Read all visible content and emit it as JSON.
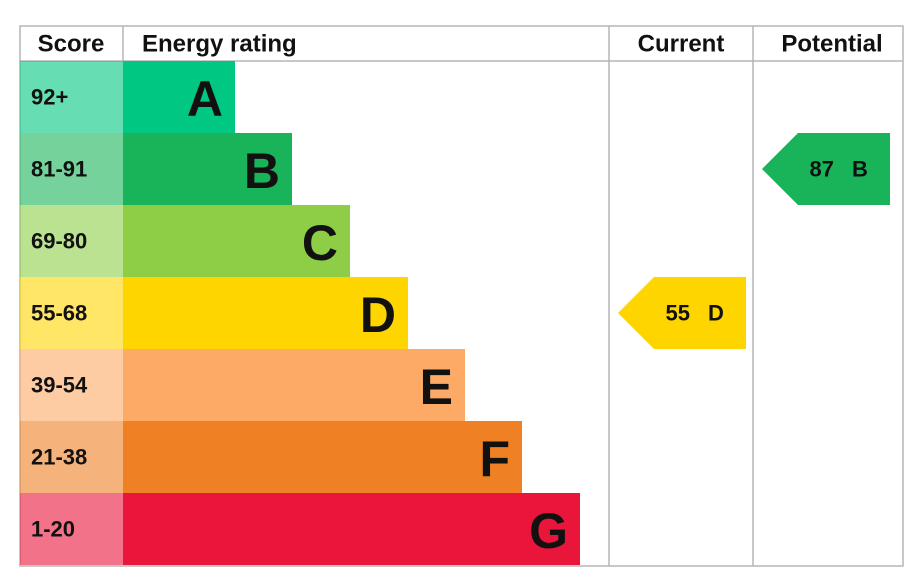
{
  "header": {
    "score": "Score",
    "energy_rating": "Energy rating",
    "current": "Current",
    "potential": "Potential"
  },
  "bands": [
    {
      "score": "92+",
      "letter": "A",
      "color": "#00c781"
    },
    {
      "score": "81-91",
      "letter": "B",
      "color": "#19b459"
    },
    {
      "score": "69-80",
      "letter": "C",
      "color": "#8dce46"
    },
    {
      "score": "55-68",
      "letter": "D",
      "color": "#ffd500"
    },
    {
      "score": "39-54",
      "letter": "E",
      "color": "#fcaa65"
    },
    {
      "score": "21-38",
      "letter": "F",
      "color": "#ef8023"
    },
    {
      "score": "1-20",
      "letter": "G",
      "color": "#e9153b"
    }
  ],
  "current": {
    "value": 55,
    "letter": "D"
  },
  "potential": {
    "value": 87,
    "letter": "B"
  }
}
